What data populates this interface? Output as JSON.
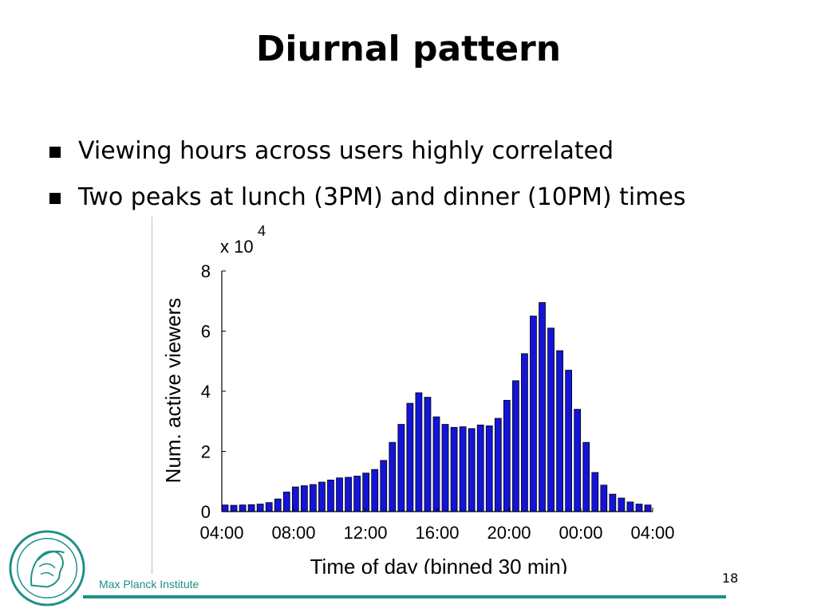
{
  "slide": {
    "title": "Diurnal pattern",
    "bullets": [
      "Viewing hours across users highly correlated",
      "Two peaks at lunch (3PM) and dinner (10PM) times"
    ],
    "footer": "Max Planck Institute",
    "page_number": "18",
    "logo_icon": "minerva-seal",
    "accent_color": "#1e8f87"
  },
  "chart_data": {
    "type": "bar",
    "ylabel": "Num. active viewers",
    "xlabel": "Time of day (binned 30 min)",
    "y_multiplier": "x 10",
    "y_exponent": "4",
    "ylim": [
      0,
      8
    ],
    "yticks": [
      0,
      2,
      4,
      6,
      8
    ],
    "xticks": [
      "04:00",
      "08:00",
      "12:00",
      "16:00",
      "20:00",
      "00:00",
      "04:00"
    ],
    "bar_color": "#1414d8",
    "values": [
      0.22,
      0.21,
      0.22,
      0.23,
      0.25,
      0.3,
      0.42,
      0.65,
      0.82,
      0.86,
      0.9,
      0.98,
      1.05,
      1.12,
      1.14,
      1.18,
      1.28,
      1.4,
      1.7,
      2.3,
      2.9,
      3.6,
      3.95,
      3.8,
      3.15,
      2.9,
      2.8,
      2.82,
      2.76,
      2.88,
      2.85,
      3.1,
      3.7,
      4.35,
      5.25,
      6.5,
      6.95,
      6.1,
      5.35,
      4.7,
      3.4,
      2.3,
      1.3,
      0.88,
      0.58,
      0.45,
      0.32,
      0.25,
      0.22
    ]
  }
}
